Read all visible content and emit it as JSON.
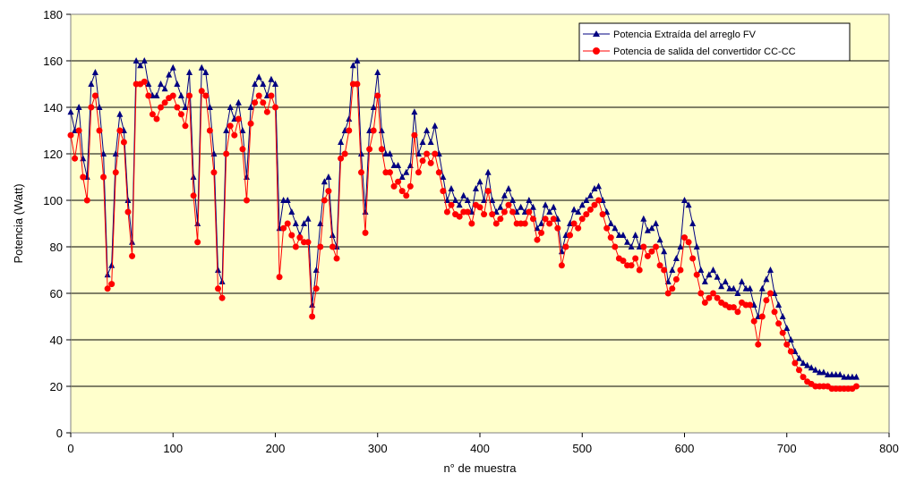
{
  "colors": {
    "plot_bg": "#ffffcc",
    "series_fv": "#000080",
    "series_cc": "#ff0000",
    "grid": "#000000"
  },
  "chart_data": {
    "type": "line",
    "title": "",
    "xlabel": "n° de muestra",
    "ylabel": "Potencia (Watt)",
    "xlim": [
      0,
      800
    ],
    "ylim": [
      0,
      180
    ],
    "x_ticks": [
      0,
      100,
      200,
      300,
      400,
      500,
      600,
      700,
      800
    ],
    "y_ticks": [
      0,
      20,
      40,
      60,
      80,
      100,
      120,
      140,
      160,
      180
    ],
    "grid": "horizontal",
    "legend_position": "top-right",
    "series": [
      {
        "name": "Potencia Extraída del arreglo FV",
        "color": "#000080",
        "marker": "triangle",
        "x": [
          0,
          4,
          8,
          12,
          16,
          20,
          24,
          28,
          32,
          36,
          40,
          44,
          48,
          52,
          56,
          60,
          64,
          68,
          72,
          76,
          80,
          84,
          88,
          92,
          96,
          100,
          104,
          108,
          112,
          116,
          120,
          124,
          128,
          132,
          136,
          140,
          144,
          148,
          152,
          156,
          160,
          164,
          168,
          172,
          176,
          180,
          184,
          188,
          192,
          196,
          200,
          204,
          208,
          212,
          216,
          220,
          224,
          228,
          232,
          236,
          240,
          244,
          248,
          252,
          256,
          260,
          264,
          268,
          272,
          276,
          280,
          284,
          288,
          292,
          296,
          300,
          304,
          308,
          312,
          316,
          320,
          324,
          328,
          332,
          336,
          340,
          344,
          348,
          352,
          356,
          360,
          364,
          368,
          372,
          376,
          380,
          384,
          388,
          392,
          396,
          400,
          404,
          408,
          412,
          416,
          420,
          424,
          428,
          432,
          436,
          440,
          444,
          448,
          452,
          456,
          460,
          464,
          468,
          472,
          476,
          480,
          484,
          488,
          492,
          496,
          500,
          504,
          508,
          512,
          516,
          520,
          524,
          528,
          532,
          536,
          540,
          544,
          548,
          552,
          556,
          560,
          564,
          568,
          572,
          576,
          580,
          584,
          588,
          592,
          596,
          600,
          604,
          608,
          612,
          616,
          620,
          624,
          628,
          632,
          636,
          640,
          644,
          648,
          652,
          656,
          660,
          664,
          668,
          672,
          676,
          680,
          684,
          688,
          692,
          696,
          700,
          704,
          708,
          712,
          716,
          720,
          724,
          728,
          732,
          736,
          740,
          744,
          748,
          752,
          756,
          760,
          764,
          768
        ],
        "values": [
          138,
          130,
          140,
          118,
          110,
          150,
          155,
          140,
          120,
          68,
          72,
          120,
          137,
          130,
          100,
          82,
          160,
          158,
          160,
          150,
          145,
          145,
          150,
          148,
          154,
          157,
          150,
          145,
          140,
          155,
          110,
          90,
          157,
          155,
          140,
          120,
          70,
          65,
          130,
          140,
          135,
          142,
          130,
          110,
          140,
          150,
          153,
          150,
          145,
          152,
          150,
          88,
          100,
          100,
          95,
          90,
          85,
          90,
          92,
          55,
          70,
          90,
          108,
          110,
          85,
          80,
          125,
          130,
          135,
          158,
          160,
          120,
          95,
          130,
          140,
          155,
          130,
          120,
          120,
          115,
          115,
          110,
          112,
          115,
          138,
          120,
          125,
          130,
          125,
          132,
          120,
          110,
          100,
          105,
          100,
          98,
          102,
          100,
          95,
          105,
          108,
          100,
          112,
          100,
          95,
          97,
          102,
          105,
          100,
          95,
          97,
          95,
          100,
          97,
          88,
          90,
          98,
          95,
          97,
          92,
          78,
          85,
          90,
          96,
          95,
          98,
          100,
          102,
          105,
          106,
          100,
          95,
          90,
          88,
          85,
          85,
          82,
          80,
          85,
          80,
          92,
          87,
          88,
          90,
          83,
          78,
          65,
          70,
          75,
          80,
          100,
          98,
          90,
          80,
          70,
          65,
          68,
          70,
          67,
          63,
          65,
          62,
          62,
          60,
          65,
          62,
          62,
          55,
          50,
          62,
          66,
          70,
          60,
          55,
          50,
          45,
          40,
          35,
          32,
          30,
          29,
          28,
          27,
          26,
          26,
          25,
          25,
          25,
          25,
          24,
          24,
          24,
          24
        ]
      },
      {
        "name": "Potencia de salida del convertidor CC-CC",
        "color": "#ff0000",
        "marker": "circle",
        "x": [
          0,
          4,
          8,
          12,
          16,
          20,
          24,
          28,
          32,
          36,
          40,
          44,
          48,
          52,
          56,
          60,
          64,
          68,
          72,
          76,
          80,
          84,
          88,
          92,
          96,
          100,
          104,
          108,
          112,
          116,
          120,
          124,
          128,
          132,
          136,
          140,
          144,
          148,
          152,
          156,
          160,
          164,
          168,
          172,
          176,
          180,
          184,
          188,
          192,
          196,
          200,
          204,
          208,
          212,
          216,
          220,
          224,
          228,
          232,
          236,
          240,
          244,
          248,
          252,
          256,
          260,
          264,
          268,
          272,
          276,
          280,
          284,
          288,
          292,
          296,
          300,
          304,
          308,
          312,
          316,
          320,
          324,
          328,
          332,
          336,
          340,
          344,
          348,
          352,
          356,
          360,
          364,
          368,
          372,
          376,
          380,
          384,
          388,
          392,
          396,
          400,
          404,
          408,
          412,
          416,
          420,
          424,
          428,
          432,
          436,
          440,
          444,
          448,
          452,
          456,
          460,
          464,
          468,
          472,
          476,
          480,
          484,
          488,
          492,
          496,
          500,
          504,
          508,
          512,
          516,
          520,
          524,
          528,
          532,
          536,
          540,
          544,
          548,
          552,
          556,
          560,
          564,
          568,
          572,
          576,
          580,
          584,
          588,
          592,
          596,
          600,
          604,
          608,
          612,
          616,
          620,
          624,
          628,
          632,
          636,
          640,
          644,
          648,
          652,
          656,
          660,
          664,
          668,
          672,
          676,
          680,
          684,
          688,
          692,
          696,
          700,
          704,
          708,
          712,
          716,
          720,
          724,
          728,
          732,
          736,
          740,
          744,
          748,
          752,
          756,
          760,
          764,
          768
        ],
        "values": [
          128,
          118,
          130,
          110,
          100,
          140,
          145,
          130,
          110,
          62,
          64,
          112,
          130,
          125,
          95,
          76,
          150,
          150,
          151,
          145,
          137,
          135,
          140,
          142,
          144,
          145,
          140,
          137,
          132,
          145,
          102,
          82,
          147,
          145,
          130,
          112,
          62,
          58,
          120,
          132,
          128,
          135,
          122,
          100,
          133,
          142,
          145,
          142,
          138,
          145,
          140,
          67,
          88,
          90,
          85,
          80,
          84,
          82,
          82,
          50,
          62,
          80,
          100,
          104,
          80,
          75,
          118,
          120,
          130,
          150,
          150,
          112,
          86,
          122,
          130,
          145,
          122,
          112,
          112,
          106,
          108,
          104,
          102,
          106,
          128,
          112,
          117,
          120,
          116,
          120,
          112,
          104,
          95,
          98,
          94,
          93,
          95,
          95,
          90,
          98,
          97,
          94,
          104,
          94,
          90,
          92,
          95,
          98,
          95,
          90,
          90,
          90,
          95,
          92,
          83,
          86,
          92,
          90,
          92,
          88,
          72,
          80,
          85,
          90,
          88,
          92,
          94,
          96,
          98,
          100,
          94,
          88,
          84,
          80,
          75,
          74,
          72,
          72,
          75,
          70,
          80,
          76,
          78,
          80,
          72,
          70,
          60,
          62,
          66,
          70,
          84,
          82,
          75,
          68,
          60,
          56,
          58,
          60,
          58,
          56,
          55,
          54,
          54,
          52,
          56,
          55,
          55,
          48,
          38,
          50,
          57,
          60,
          52,
          47,
          43,
          38,
          35,
          30,
          27,
          24,
          22,
          21,
          20,
          20,
          20,
          20,
          19,
          19,
          19,
          19,
          19,
          19,
          20
        ]
      }
    ]
  }
}
